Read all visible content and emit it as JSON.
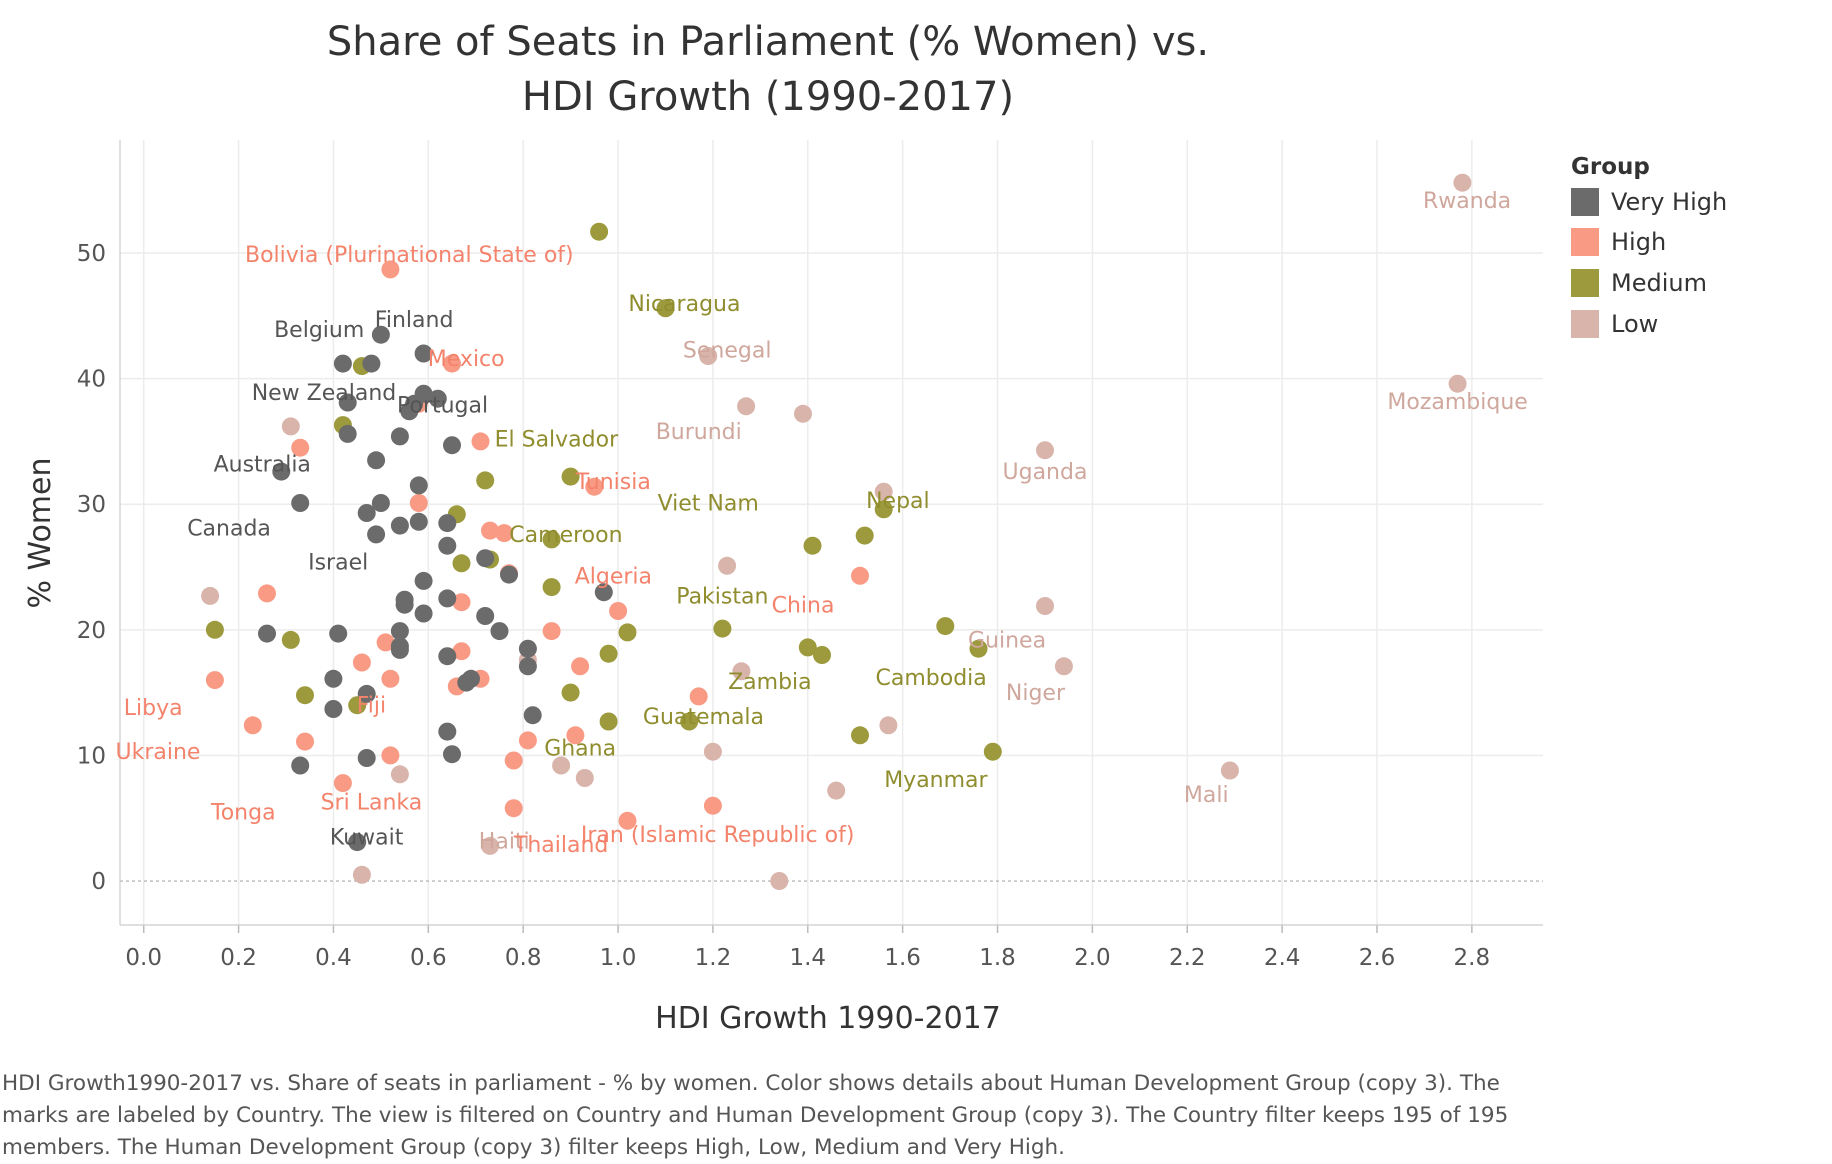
{
  "caption": "HDI Growth1990-2017 vs. Share of seats in parliament - % by women.  Color shows details about Human Development Group (copy 3).  The marks are labeled by Country. The view is filtered on Country and Human Development Group (copy 3). The Country filter keeps 195 of 195 members. The Human Development Group (copy 3) filter keeps High, Low, Medium and Very High.",
  "legend": {
    "title": "Group",
    "items": [
      {
        "name": "Very High",
        "color": "#6b6b6b"
      },
      {
        "name": "High",
        "color": "#f99a85"
      },
      {
        "name": "Medium",
        "color": "#9c9a3c"
      },
      {
        "name": "Low",
        "color": "#d9b4ab"
      }
    ]
  },
  "chart_data": {
    "type": "scatter",
    "title_lines": [
      "Share of Seats in Parliament (% Women) vs.",
      "HDI Growth (1990-2017)"
    ],
    "xlabel": "HDI Growth 1990-2017",
    "ylabel": "% Women",
    "xlim": [
      -0.05,
      2.95
    ],
    "ylim": [
      -3.5,
      59
    ],
    "xticks": [
      "0.0",
      "0.2",
      "0.4",
      "0.6",
      "0.8",
      "1.0",
      "1.2",
      "1.4",
      "1.6",
      "1.8",
      "2.0",
      "2.2",
      "2.4",
      "2.6",
      "2.8"
    ],
    "yticks": [
      "0",
      "10",
      "20",
      "30",
      "40",
      "50"
    ],
    "grid": true,
    "legend_position": "right",
    "labels": [
      {
        "text": "Rwanda",
        "x": 2.79,
        "y": 53.6,
        "group": "Low"
      },
      {
        "text": "Mozambique",
        "x": 2.77,
        "y": 37.6,
        "group": "Low"
      },
      {
        "text": "Bolivia (Plurinational State of)",
        "x": 0.56,
        "y": 49.3,
        "group": "High"
      },
      {
        "text": "Nicaragua",
        "x": 1.14,
        "y": 45.4,
        "group": "Medium"
      },
      {
        "text": "Belgium",
        "x": 0.37,
        "y": 43.3,
        "group": "Very High"
      },
      {
        "text": "Finland",
        "x": 0.57,
        "y": 44.1,
        "group": "Very High"
      },
      {
        "text": "Mexico",
        "x": 0.68,
        "y": 41.0,
        "group": "High"
      },
      {
        "text": "Senegal",
        "x": 1.23,
        "y": 41.7,
        "group": "Low"
      },
      {
        "text": "New Zealand",
        "x": 0.38,
        "y": 38.3,
        "group": "Very High"
      },
      {
        "text": "Portugal",
        "x": 0.63,
        "y": 37.3,
        "group": "Very High"
      },
      {
        "text": "El Salvador",
        "x": 0.87,
        "y": 34.6,
        "group": "Medium"
      },
      {
        "text": "Burundi",
        "x": 1.17,
        "y": 35.2,
        "group": "Low"
      },
      {
        "text": "Australia",
        "x": 0.25,
        "y": 32.6,
        "group": "Very High"
      },
      {
        "text": "Uganda",
        "x": 1.9,
        "y": 32.0,
        "group": "Low"
      },
      {
        "text": "Tunisia",
        "x": 0.99,
        "y": 31.2,
        "group": "High"
      },
      {
        "text": "Nepal",
        "x": 1.59,
        "y": 29.7,
        "group": "Medium"
      },
      {
        "text": "Viet Nam",
        "x": 1.19,
        "y": 29.5,
        "group": "Medium"
      },
      {
        "text": "Canada",
        "x": 0.18,
        "y": 27.5,
        "group": "Very High"
      },
      {
        "text": "Cameroon",
        "x": 0.89,
        "y": 27.0,
        "group": "Medium"
      },
      {
        "text": "Israel",
        "x": 0.41,
        "y": 24.8,
        "group": "Very High"
      },
      {
        "text": "Algeria",
        "x": 0.99,
        "y": 23.7,
        "group": "High"
      },
      {
        "text": "Pakistan",
        "x": 1.22,
        "y": 22.1,
        "group": "Medium"
      },
      {
        "text": "China",
        "x": 1.39,
        "y": 21.4,
        "group": "High"
      },
      {
        "text": "Guinea",
        "x": 1.82,
        "y": 18.6,
        "group": "Low"
      },
      {
        "text": "Zambia",
        "x": 1.32,
        "y": 15.3,
        "group": "Medium"
      },
      {
        "text": "Cambodia",
        "x": 1.66,
        "y": 15.6,
        "group": "Medium"
      },
      {
        "text": "Niger",
        "x": 1.88,
        "y": 14.4,
        "group": "Low"
      },
      {
        "text": "Libya",
        "x": 0.02,
        "y": 13.2,
        "group": "High"
      },
      {
        "text": "Fiji",
        "x": 0.48,
        "y": 13.4,
        "group": "High"
      },
      {
        "text": "Guatemala",
        "x": 1.18,
        "y": 12.5,
        "group": "Medium"
      },
      {
        "text": "Ukraine",
        "x": 0.03,
        "y": 9.7,
        "group": "High"
      },
      {
        "text": "Ghana",
        "x": 0.92,
        "y": 10.0,
        "group": "Medium"
      },
      {
        "text": "Myanmar",
        "x": 1.67,
        "y": 7.5,
        "group": "Medium"
      },
      {
        "text": "Mali",
        "x": 2.24,
        "y": 6.3,
        "group": "Low"
      },
      {
        "text": "Tonga",
        "x": 0.21,
        "y": 4.9,
        "group": "High"
      },
      {
        "text": "Sri Lanka",
        "x": 0.48,
        "y": 5.7,
        "group": "High"
      },
      {
        "text": "Kuwait",
        "x": 0.47,
        "y": 2.9,
        "group": "Very High"
      },
      {
        "text": "Haiti",
        "x": 0.76,
        "y": 2.6,
        "group": "Low"
      },
      {
        "text": "Thailand",
        "x": 0.88,
        "y": 2.3,
        "group": "High"
      },
      {
        "text": "Iran (Islamic Republic of)",
        "x": 1.21,
        "y": 3.1,
        "group": "High"
      }
    ],
    "series": [
      {
        "name": "Very High",
        "color": "#6b6b6b",
        "points": [
          [
            0.5,
            43.5
          ],
          [
            0.59,
            42.0
          ],
          [
            0.42,
            41.2
          ],
          [
            0.48,
            41.2
          ],
          [
            0.59,
            38.8
          ],
          [
            0.62,
            38.4
          ],
          [
            0.57,
            38.0
          ],
          [
            0.43,
            38.1
          ],
          [
            0.56,
            37.4
          ],
          [
            0.43,
            35.6
          ],
          [
            0.54,
            35.4
          ],
          [
            0.65,
            34.7
          ],
          [
            0.49,
            33.5
          ],
          [
            0.29,
            32.6
          ],
          [
            0.58,
            31.5
          ],
          [
            0.33,
            30.1
          ],
          [
            0.5,
            30.1
          ],
          [
            0.47,
            29.3
          ],
          [
            0.54,
            28.3
          ],
          [
            0.58,
            28.6
          ],
          [
            0.64,
            28.5
          ],
          [
            0.49,
            27.6
          ],
          [
            0.64,
            26.7
          ],
          [
            0.72,
            25.7
          ],
          [
            0.77,
            24.4
          ],
          [
            0.59,
            23.9
          ],
          [
            0.97,
            23.0
          ],
          [
            0.55,
            22.4
          ],
          [
            0.64,
            22.5
          ],
          [
            0.55,
            22.0
          ],
          [
            0.59,
            21.3
          ],
          [
            0.72,
            21.1
          ],
          [
            0.75,
            19.9
          ],
          [
            0.26,
            19.7
          ],
          [
            0.41,
            19.7
          ],
          [
            0.54,
            19.9
          ],
          [
            0.54,
            18.7
          ],
          [
            0.54,
            18.4
          ],
          [
            0.81,
            18.5
          ],
          [
            0.64,
            17.9
          ],
          [
            0.81,
            17.1
          ],
          [
            0.4,
            16.1
          ],
          [
            0.69,
            16.1
          ],
          [
            0.68,
            15.8
          ],
          [
            0.47,
            14.9
          ],
          [
            0.4,
            13.7
          ],
          [
            0.82,
            13.2
          ],
          [
            0.64,
            11.9
          ],
          [
            0.65,
            10.1
          ],
          [
            0.47,
            9.8
          ],
          [
            0.33,
            9.2
          ],
          [
            0.45,
            3.1
          ]
        ]
      },
      {
        "name": "High",
        "color": "#f99a85",
        "points": [
          [
            0.52,
            48.7
          ],
          [
            0.65,
            41.2
          ],
          [
            0.58,
            38.0
          ],
          [
            0.33,
            34.5
          ],
          [
            0.71,
            35.0
          ],
          [
            0.95,
            31.4
          ],
          [
            0.58,
            30.1
          ],
          [
            0.73,
            27.9
          ],
          [
            0.76,
            27.7
          ],
          [
            1.51,
            24.3
          ],
          [
            0.77,
            24.5
          ],
          [
            0.26,
            22.9
          ],
          [
            0.67,
            22.2
          ],
          [
            1.0,
            21.5
          ],
          [
            0.86,
            19.9
          ],
          [
            0.51,
            19.0
          ],
          [
            0.67,
            18.3
          ],
          [
            0.46,
            17.4
          ],
          [
            0.92,
            17.1
          ],
          [
            0.15,
            16.0
          ],
          [
            0.52,
            16.1
          ],
          [
            0.71,
            16.1
          ],
          [
            0.66,
            15.5
          ],
          [
            1.17,
            14.7
          ],
          [
            0.23,
            12.4
          ],
          [
            0.91,
            11.6
          ],
          [
            0.34,
            11.1
          ],
          [
            0.81,
            11.2
          ],
          [
            0.52,
            10.0
          ],
          [
            0.78,
            9.6
          ],
          [
            0.42,
            7.8
          ],
          [
            0.78,
            5.8
          ],
          [
            1.2,
            6.0
          ],
          [
            1.02,
            4.8
          ]
        ]
      },
      {
        "name": "Medium",
        "color": "#9c9a3c",
        "points": [
          [
            0.96,
            51.7
          ],
          [
            1.1,
            45.6
          ],
          [
            0.46,
            41.0
          ],
          [
            0.42,
            36.3
          ],
          [
            0.72,
            31.9
          ],
          [
            0.9,
            32.2
          ],
          [
            1.56,
            29.6
          ],
          [
            0.66,
            29.2
          ],
          [
            1.52,
            27.5
          ],
          [
            0.86,
            27.2
          ],
          [
            1.41,
            26.7
          ],
          [
            0.73,
            25.6
          ],
          [
            0.67,
            25.3
          ],
          [
            0.86,
            23.4
          ],
          [
            1.22,
            20.1
          ],
          [
            0.15,
            20.0
          ],
          [
            1.02,
            19.8
          ],
          [
            0.31,
            19.2
          ],
          [
            1.69,
            20.3
          ],
          [
            1.4,
            18.6
          ],
          [
            1.43,
            18.0
          ],
          [
            0.98,
            18.1
          ],
          [
            1.76,
            18.5
          ],
          [
            0.34,
            14.8
          ],
          [
            0.9,
            15.0
          ],
          [
            0.45,
            14.0
          ],
          [
            1.15,
            12.7
          ],
          [
            0.98,
            12.7
          ],
          [
            1.51,
            11.6
          ],
          [
            1.79,
            10.3
          ]
        ]
      },
      {
        "name": "Low",
        "color": "#d9b4ab",
        "points": [
          [
            2.78,
            55.6
          ],
          [
            2.77,
            39.6
          ],
          [
            1.19,
            41.8
          ],
          [
            1.27,
            37.8
          ],
          [
            1.39,
            37.2
          ],
          [
            0.31,
            36.2
          ],
          [
            1.9,
            34.3
          ],
          [
            1.56,
            31.0
          ],
          [
            1.23,
            25.1
          ],
          [
            0.14,
            22.7
          ],
          [
            1.9,
            21.9
          ],
          [
            0.81,
            17.6
          ],
          [
            1.94,
            17.1
          ],
          [
            1.26,
            16.7
          ],
          [
            1.57,
            12.4
          ],
          [
            1.2,
            10.3
          ],
          [
            0.88,
            9.2
          ],
          [
            0.93,
            8.2
          ],
          [
            0.54,
            8.5
          ],
          [
            2.29,
            8.8
          ],
          [
            1.46,
            7.2
          ],
          [
            0.73,
            2.8
          ],
          [
            0.46,
            0.5
          ],
          [
            1.34,
            0.0
          ]
        ]
      }
    ]
  }
}
